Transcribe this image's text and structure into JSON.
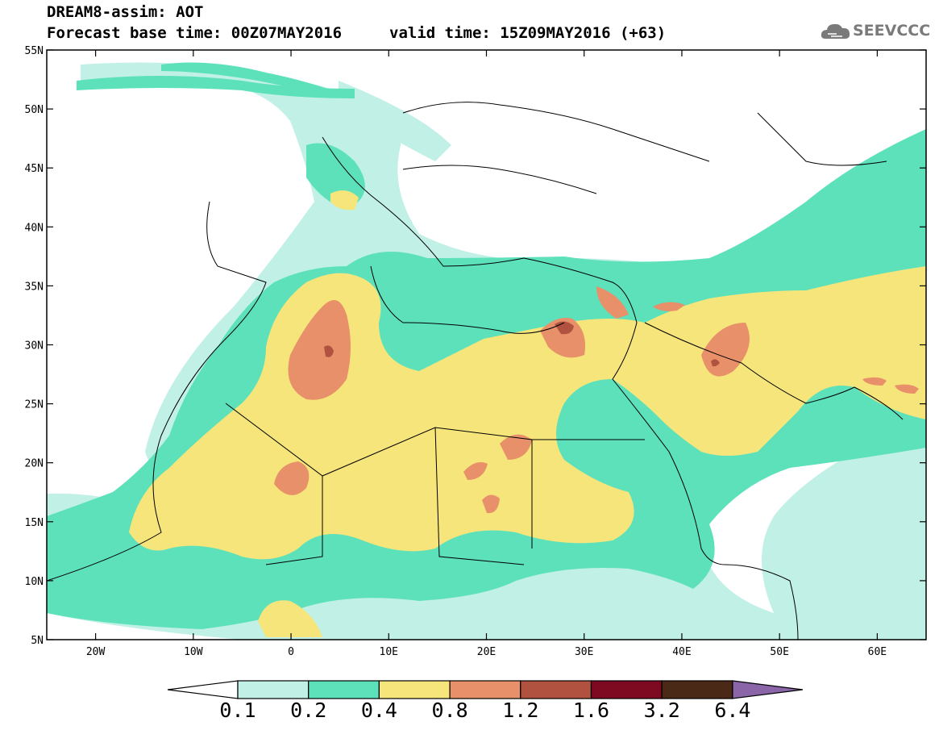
{
  "header": {
    "title": "DREAM8-assim: AOT",
    "base_time": "Forecast base time: 00Z07MAY2016",
    "valid_time": "valid time: 15Z09MAY2016 (+63)"
  },
  "logo": {
    "text": "SEEVCCC",
    "icon": "cloud-logo-icon"
  },
  "map": {
    "lat_labels": [
      "55N",
      "50N",
      "45N",
      "40N",
      "35N",
      "30N",
      "25N",
      "20N",
      "15N",
      "10N",
      "5N"
    ],
    "lon_labels": [
      "20W",
      "10W",
      "0",
      "10E",
      "20E",
      "30E",
      "40E",
      "50E",
      "60E"
    ],
    "lat_range": [
      5,
      55
    ],
    "lon_range": [
      -25,
      65
    ]
  },
  "colorbar": {
    "labels": [
      "0.1",
      "0.2",
      "0.4",
      "0.8",
      "1.2",
      "1.6",
      "3.2",
      "6.4"
    ],
    "colors": [
      "#ffffff",
      "#c0f0e6",
      "#5ce1bb",
      "#f6e57b",
      "#e8906a",
      "#b0523f",
      "#7e0a22",
      "#4a2a16",
      "#8a65a8"
    ]
  }
}
